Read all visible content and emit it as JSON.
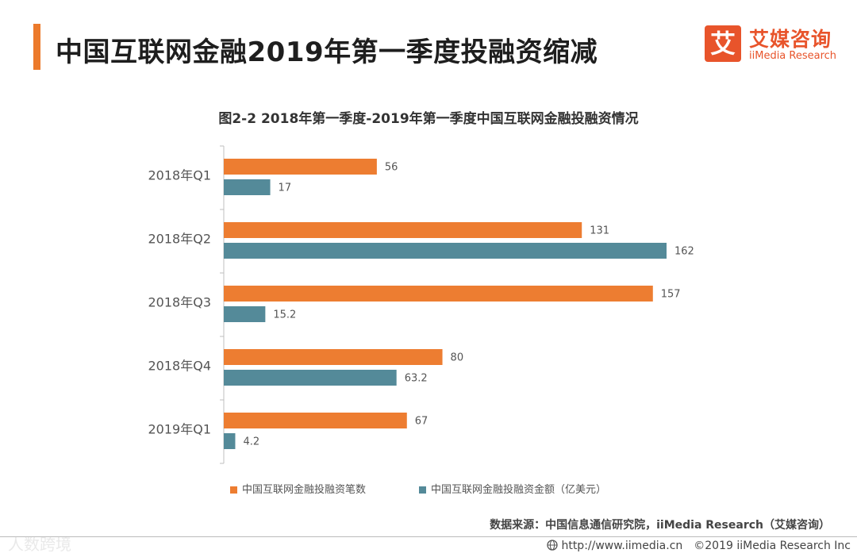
{
  "header": {
    "title": "中国互联网金融2019年第一季度投融资缩减",
    "logo_glyph": "艾",
    "logo_cn": "艾媒咨询",
    "logo_en": "iiMedia Research"
  },
  "colors": {
    "accent": "#ec7a2b",
    "series1": "#ed7d31",
    "series2": "#548a99",
    "logo": "#e8542b"
  },
  "chart_data": {
    "type": "bar",
    "orientation": "horizontal",
    "title": "图2-2 2018年第一季度-2019年第一季度中国互联网金融投融资情况",
    "categories": [
      "2018年Q1",
      "2018年Q2",
      "2018年Q3",
      "2018年Q4",
      "2019年Q1"
    ],
    "series": [
      {
        "name": "中国互联网金融投融资笔数",
        "values": [
          56,
          131,
          157,
          80,
          67
        ],
        "labels": [
          "56",
          "131",
          "157",
          "80",
          "67"
        ]
      },
      {
        "name": "中国互联网金融投融资金额（亿美元）",
        "values": [
          17,
          162,
          15.2,
          63.2,
          4.2
        ],
        "labels": [
          "17",
          "162",
          "15.2",
          "63.2",
          "4.2"
        ]
      }
    ],
    "xlim": [
      0,
      162
    ],
    "xlabel": "",
    "ylabel": "",
    "grid": false,
    "legend": "bottom"
  },
  "footer": {
    "source": "数据来源：中国信息通信研究院，iiMedia  Research（艾媒咨询）",
    "watermark": "人数跨境",
    "url": "http://www.iimedia.cn",
    "copyright": "©2019  iiMedia Research  Inc"
  }
}
